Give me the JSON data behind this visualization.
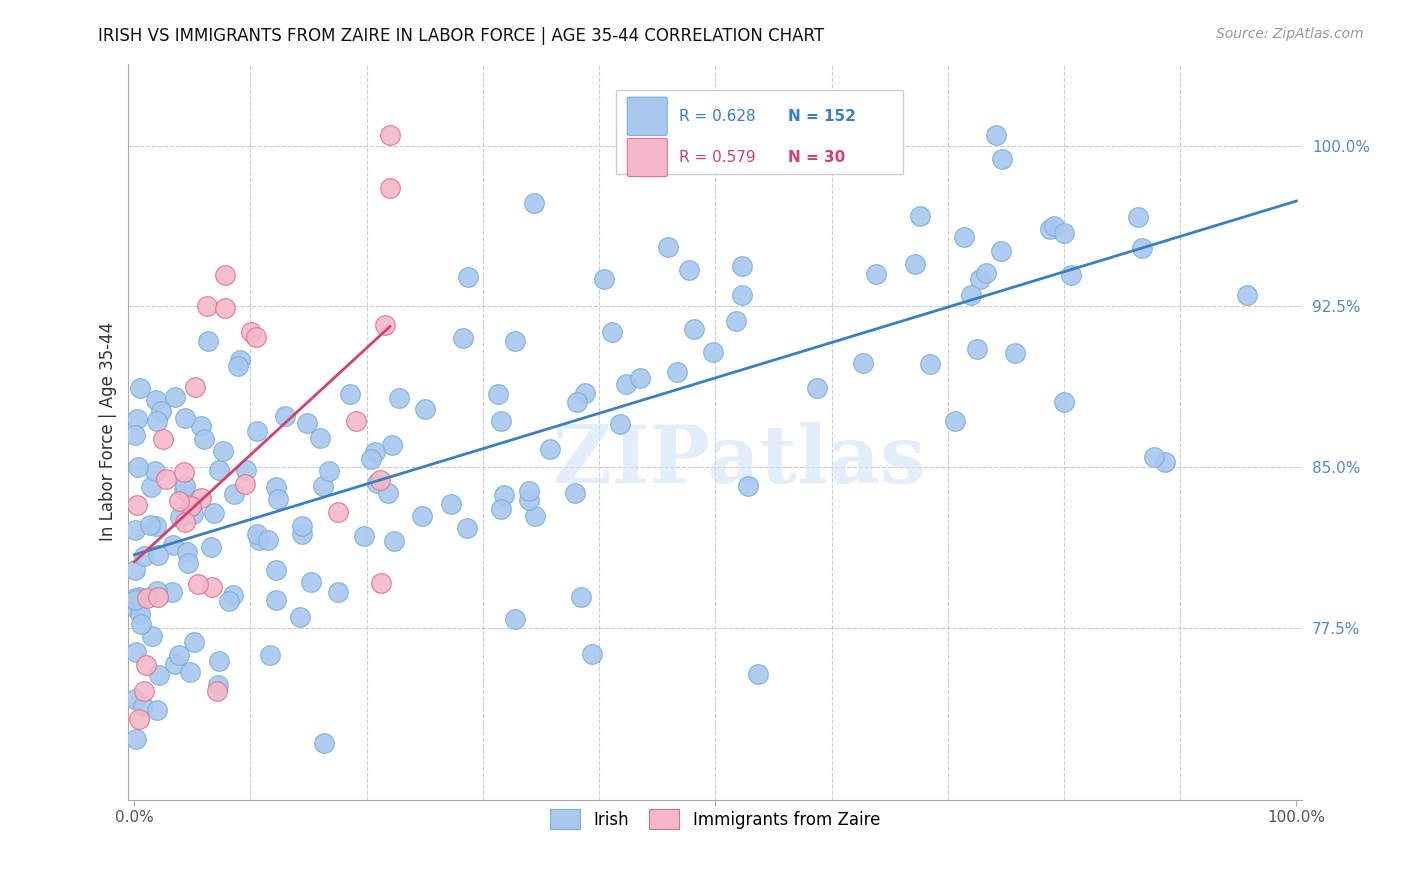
{
  "title": "IRISH VS IMMIGRANTS FROM ZAIRE IN LABOR FORCE | AGE 35-44 CORRELATION CHART",
  "source": "Source: ZipAtlas.com",
  "ylabel": "In Labor Force | Age 35-44",
  "blue_color": "#a8c8f0",
  "blue_edge_color": "#7aafd4",
  "pink_color": "#f4b8c8",
  "pink_edge_color": "#e07090",
  "blue_line_color": "#3a7fc1",
  "pink_line_color": "#d44070",
  "blue_R": 0.628,
  "blue_N": 152,
  "pink_R": 0.579,
  "pink_N": 30,
  "legend_labels": [
    "Irish",
    "Immigrants from Zaire"
  ],
  "watermark": "ZIPatlas",
  "ytick_labels": [
    "77.5%",
    "85.0%",
    "92.5%",
    "100.0%"
  ],
  "ytick_color": "#5588cc",
  "grid_color": "#cccccc",
  "title_fontsize": 12,
  "source_fontsize": 10,
  "ylabel_fontsize": 12
}
